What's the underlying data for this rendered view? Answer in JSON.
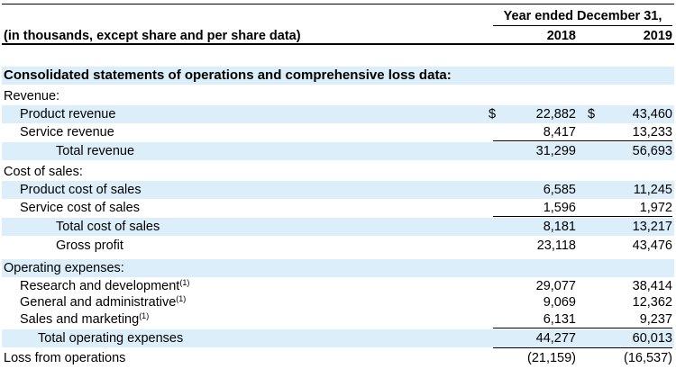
{
  "header": {
    "period": "Year ended December 31,",
    "subtitle": "(in thousands, except share and per share data)",
    "year1": "2018",
    "year2": "2019"
  },
  "section_title": "Consolidated statements of operations and comprehensive loss data:",
  "currency_symbol": "$",
  "rows": [
    {
      "label": "Revenue:",
      "v2018": "",
      "v2019": ""
    },
    {
      "label": "Product revenue",
      "v2018": "22,882",
      "v2019": "43,460"
    },
    {
      "label": "Service revenue",
      "v2018": "8,417",
      "v2019": "13,233"
    },
    {
      "label": "Total revenue",
      "v2018": "31,299",
      "v2019": "56,693"
    },
    {
      "label": "Cost of sales:",
      "v2018": "",
      "v2019": ""
    },
    {
      "label": "Product cost of sales",
      "v2018": "6,585",
      "v2019": "11,245"
    },
    {
      "label": "Service cost of sales",
      "v2018": "1,596",
      "v2019": "1,972"
    },
    {
      "label": "Total cost of sales",
      "v2018": "8,181",
      "v2019": "13,217"
    },
    {
      "label": "Gross profit",
      "v2018": "23,118",
      "v2019": "43,476"
    },
    {
      "label": "Operating expenses:",
      "v2018": "",
      "v2019": ""
    },
    {
      "label": "Research and development",
      "note": "(1)",
      "v2018": "29,077",
      "v2019": "38,414"
    },
    {
      "label": "General and administrative",
      "note": "(1)",
      "v2018": "9,069",
      "v2019": "12,362"
    },
    {
      "label": "Sales and marketing",
      "note": "(1)",
      "v2018": "6,131",
      "v2019": "9,237"
    },
    {
      "label": "Total operating expenses",
      "v2018": "44,277",
      "v2019": "60,013"
    },
    {
      "label": "Loss from operations",
      "v2018": "(21,159)",
      "v2019": "(16,537)"
    }
  ]
}
